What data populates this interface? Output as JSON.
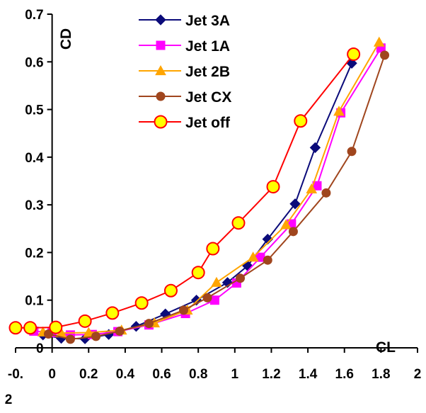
{
  "chart_data": {
    "type": "line",
    "xlabel": "CL",
    "ylabel": "CD",
    "xlim": [
      -0.2,
      2
    ],
    "ylim": [
      0,
      0.7
    ],
    "x_ticks": [
      "-0.\n2",
      "0",
      "0.2",
      "0.4",
      "0.6",
      "0.8",
      "1",
      "1.2",
      "1.4",
      "1.6",
      "1.8",
      "2"
    ],
    "x_tick_values": [
      -0.2,
      0,
      0.2,
      0.4,
      0.6,
      0.8,
      1.0,
      1.2,
      1.4,
      1.6,
      1.8,
      2.0
    ],
    "y_ticks": [
      "0",
      "0.1",
      "0.2",
      "0.3",
      "0.4",
      "0.5",
      "0.6",
      "0.7"
    ],
    "y_tick_values": [
      0,
      0.1,
      0.2,
      0.3,
      0.4,
      0.5,
      0.6,
      0.7
    ],
    "legend_position": "top-center",
    "grid": false,
    "series": [
      {
        "name": "Jet 3A",
        "color": "#0b0b7a",
        "marker": "diamond",
        "x": [
          -0.05,
          0.05,
          0.18,
          0.31,
          0.46,
          0.62,
          0.79,
          0.96,
          1.07,
          1.18,
          1.33,
          1.44,
          1.64
        ],
        "y": [
          0.027,
          0.02,
          0.019,
          0.028,
          0.045,
          0.071,
          0.1,
          0.137,
          0.172,
          0.228,
          0.302,
          0.42,
          0.597
        ]
      },
      {
        "name": "Jet 1A",
        "color": "#ff00ff",
        "marker": "square",
        "x": [
          -0.1,
          0.0,
          0.1,
          0.22,
          0.36,
          0.53,
          0.73,
          0.89,
          1.01,
          1.14,
          1.31,
          1.45,
          1.58,
          1.8
        ],
        "y": [
          0.035,
          0.032,
          0.027,
          0.028,
          0.034,
          0.048,
          0.072,
          0.1,
          0.136,
          0.19,
          0.26,
          0.34,
          0.493,
          0.629
        ]
      },
      {
        "name": "Jet 2B",
        "color": "#ffa500",
        "marker": "triangle",
        "x": [
          -0.05,
          0.05,
          0.2,
          0.38,
          0.56,
          0.74,
          0.9,
          1.1,
          1.28,
          1.42,
          1.57,
          1.79
        ],
        "y": [
          0.033,
          0.031,
          0.032,
          0.037,
          0.052,
          0.079,
          0.137,
          0.19,
          0.258,
          0.333,
          0.496,
          0.641
        ]
      },
      {
        "name": "Jet CX",
        "color": "#a0461e",
        "marker": "circle",
        "x": [
          -0.02,
          0.1,
          0.24,
          0.37,
          0.53,
          0.72,
          0.85,
          1.03,
          1.18,
          1.32,
          1.5,
          1.64,
          1.82
        ],
        "y": [
          0.029,
          0.018,
          0.024,
          0.035,
          0.051,
          0.079,
          0.105,
          0.146,
          0.184,
          0.244,
          0.325,
          0.412,
          0.614
        ]
      },
      {
        "name": "Jet off",
        "color": "#ff0000",
        "marker": "circle-open",
        "x": [
          -0.2,
          -0.12,
          0.02,
          0.18,
          0.33,
          0.49,
          0.65,
          0.8,
          0.88,
          1.02,
          1.21,
          1.36,
          1.65
        ],
        "y": [
          0.042,
          0.042,
          0.043,
          0.056,
          0.073,
          0.094,
          0.12,
          0.158,
          0.208,
          0.262,
          0.338,
          0.476,
          0.616
        ]
      }
    ]
  }
}
